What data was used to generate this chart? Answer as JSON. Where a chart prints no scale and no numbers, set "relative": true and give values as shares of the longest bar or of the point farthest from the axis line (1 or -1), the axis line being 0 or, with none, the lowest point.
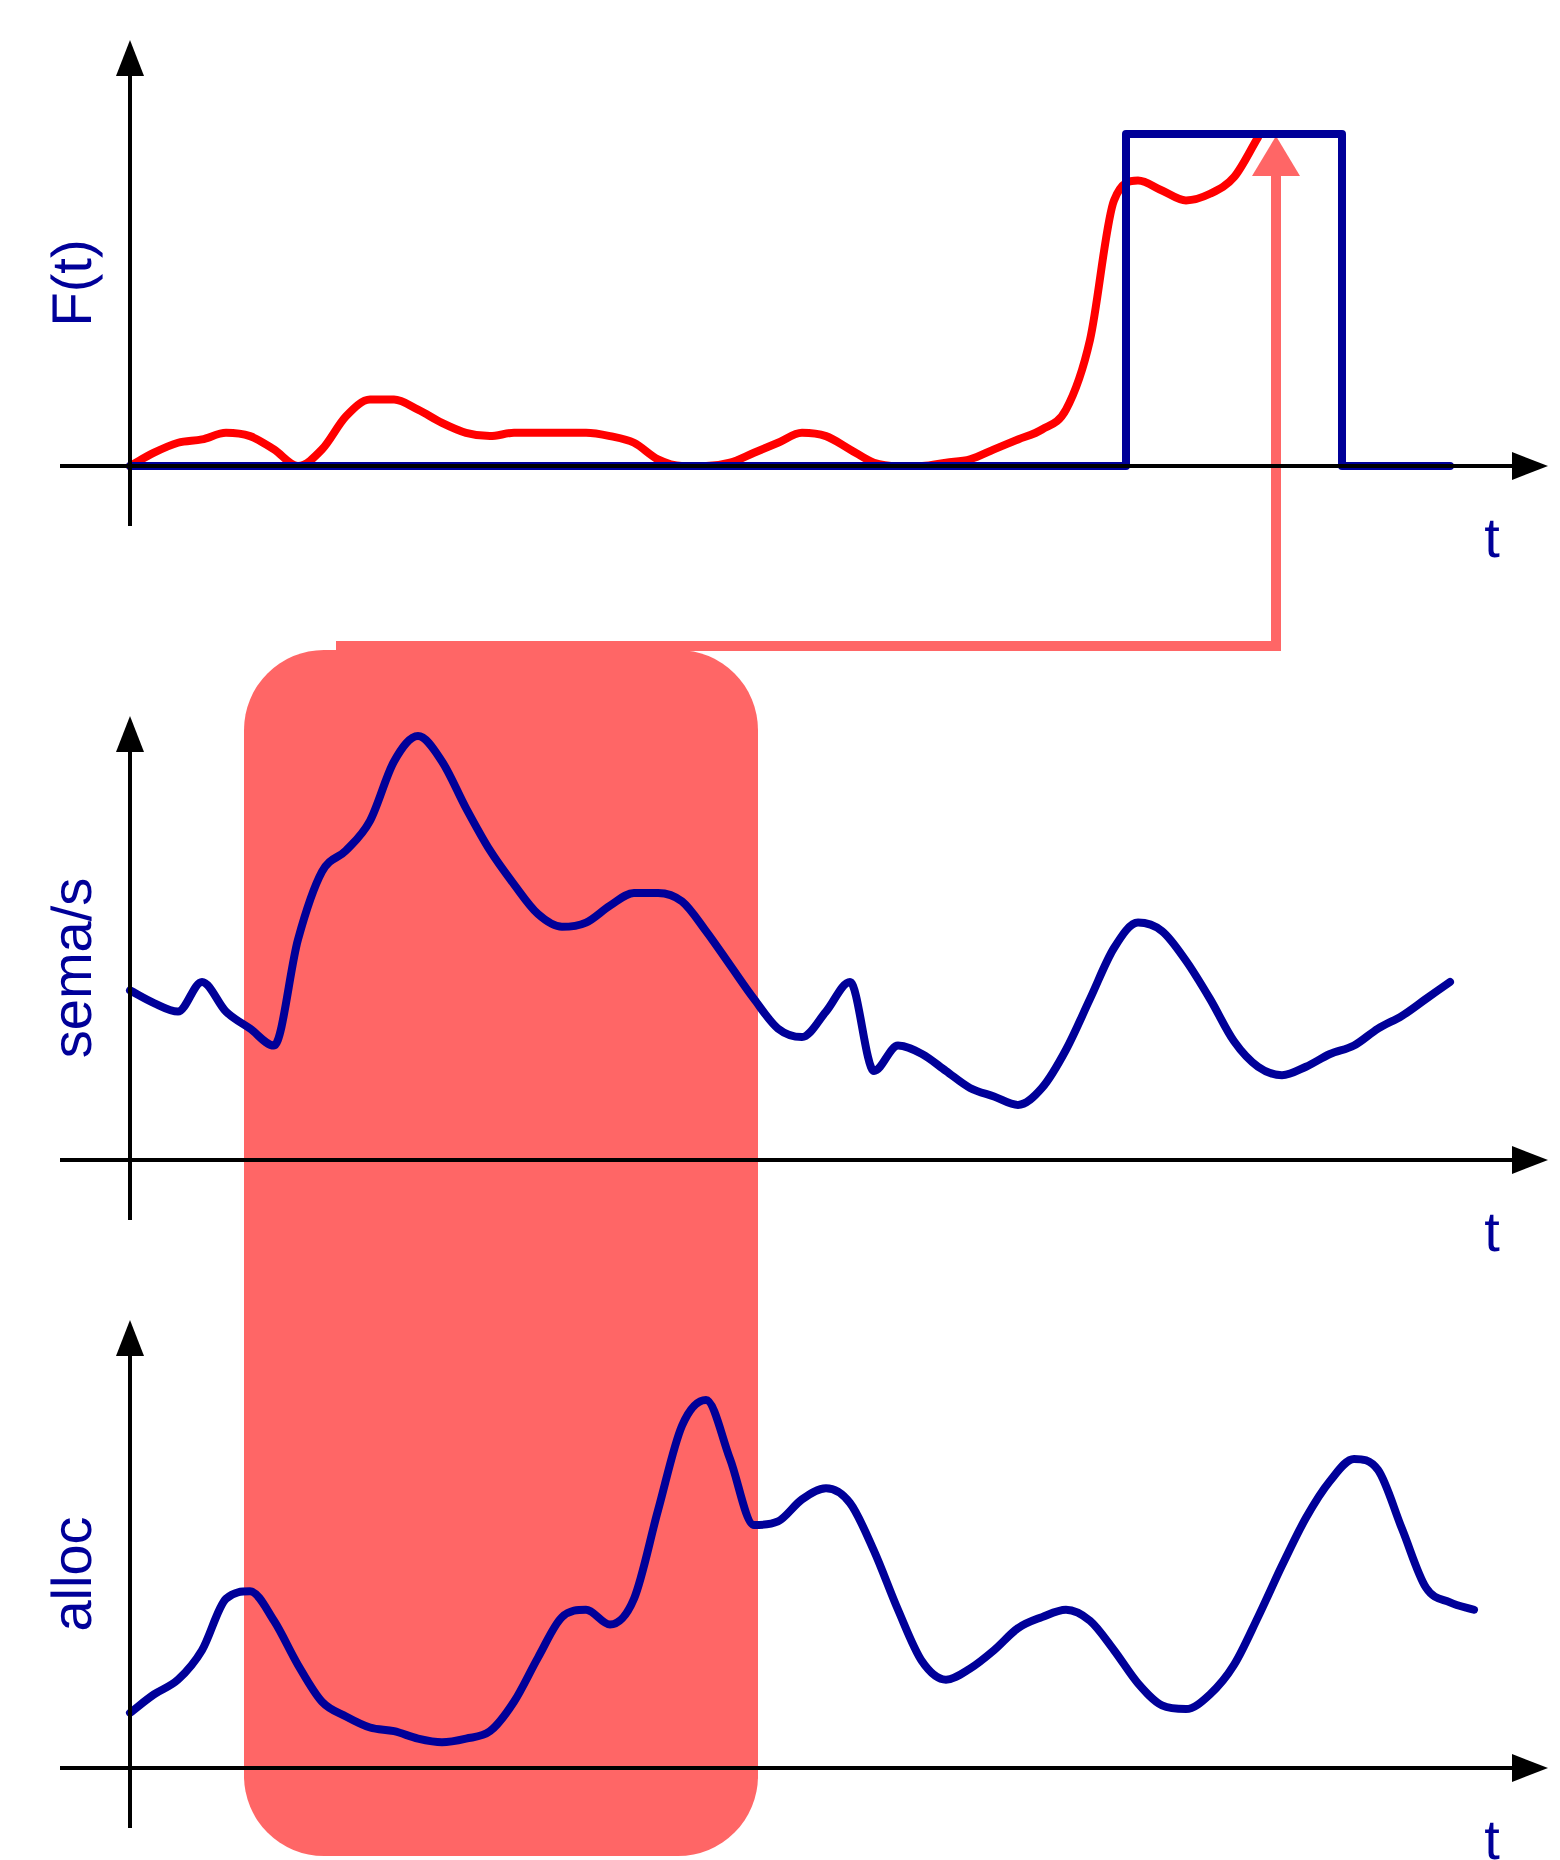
{
  "chart_data": [
    {
      "type": "line",
      "ylabel": "F(t)",
      "xlabel": "t",
      "relative": true,
      "legend": false,
      "categories": [
        null,
        null,
        null,
        null,
        null,
        null,
        null,
        null,
        null,
        null,
        null,
        null,
        null,
        null,
        null,
        null,
        null,
        null,
        null,
        null,
        null,
        null,
        null,
        null,
        null,
        null,
        null,
        null,
        null,
        null,
        null,
        null,
        null,
        null,
        null,
        null,
        null,
        null,
        null,
        null,
        null,
        null,
        null,
        null,
        null,
        null,
        null,
        null,
        null,
        null,
        null,
        null,
        null,
        null,
        null,
        null
      ],
      "series": [
        {
          "type": "step",
          "color": "#000099",
          "values": [
            0,
            0,
            0,
            0,
            0,
            0,
            0,
            0,
            0,
            0,
            0,
            0,
            0,
            0,
            0,
            0,
            0,
            0,
            0,
            0,
            0,
            0,
            0,
            0,
            0,
            0,
            0,
            0,
            0,
            0,
            0,
            0,
            0,
            0,
            0,
            0,
            0,
            0,
            0,
            0,
            0,
            0,
            1,
            1,
            1,
            1,
            1,
            1,
            1,
            1,
            1,
            0,
            0,
            0,
            0,
            0
          ]
        },
        {
          "type": "line",
          "color": "#ff0000",
          "values": [
            0,
            0.04,
            0.07,
            0.08,
            0.1,
            0.09,
            0.05,
            0,
            0.05,
            0.15,
            0.2,
            0.2,
            0.17,
            0.13,
            0.1,
            0.09,
            0.1,
            0.1,
            0.1,
            0.1,
            0.09,
            0.07,
            0.02,
            0,
            0,
            0.01,
            0.04,
            0.07,
            0.1,
            0.09,
            0.05,
            0.01,
            0,
            0,
            0.01,
            0.02,
            0.05,
            0.08,
            0.11,
            0.17,
            0.38,
            0.8,
            0.86,
            0.83,
            0.8,
            0.82,
            0.87,
            0.99,
            null,
            null,
            null,
            null,
            null,
            null,
            null,
            null
          ]
        }
      ]
    },
    {
      "type": "line",
      "ylabel": "sema/s",
      "xlabel": "t",
      "relative": true,
      "legend": false,
      "categories": [
        null,
        null,
        null,
        null,
        null,
        null,
        null,
        null,
        null,
        null,
        null,
        null,
        null,
        null,
        null,
        null,
        null,
        null,
        null,
        null,
        null,
        null,
        null,
        null,
        null,
        null,
        null,
        null,
        null,
        null,
        null,
        null,
        null,
        null,
        null,
        null,
        null,
        null,
        null,
        null,
        null,
        null,
        null,
        null,
        null,
        null,
        null,
        null,
        null,
        null,
        null,
        null,
        null,
        null,
        null,
        null
      ],
      "series": [
        {
          "color": "#000099",
          "values": [
            0.4,
            0.37,
            0.35,
            0.42,
            0.35,
            0.31,
            0.27,
            0.52,
            0.68,
            0.73,
            0.8,
            0.94,
            1,
            0.94,
            0.83,
            0.73,
            0.65,
            0.58,
            0.55,
            0.56,
            0.6,
            0.63,
            0.63,
            0.61,
            0.54,
            0.46,
            0.38,
            0.31,
            0.29,
            0.35,
            0.42,
            0.21,
            0.27,
            0.25,
            0.21,
            0.17,
            0.15,
            0.13,
            0.17,
            0.26,
            0.38,
            0.5,
            0.56,
            0.54,
            0.47,
            0.38,
            0.28,
            0.22,
            0.2,
            0.22,
            0.25,
            0.27,
            0.31,
            0.34,
            0.38,
            0.42
          ]
        }
      ]
    },
    {
      "type": "line",
      "ylabel": "alloc",
      "xlabel": "t",
      "relative": true,
      "legend": false,
      "categories": [
        null,
        null,
        null,
        null,
        null,
        null,
        null,
        null,
        null,
        null,
        null,
        null,
        null,
        null,
        null,
        null,
        null,
        null,
        null,
        null,
        null,
        null,
        null,
        null,
        null,
        null,
        null,
        null,
        null,
        null,
        null,
        null,
        null,
        null,
        null,
        null,
        null,
        null,
        null,
        null,
        null,
        null,
        null,
        null,
        null,
        null,
        null,
        null,
        null,
        null,
        null,
        null,
        null,
        null,
        null,
        null,
        null
      ],
      "series": [
        {
          "color": "#000099",
          "values": [
            0.15,
            0.2,
            0.24,
            0.32,
            0.46,
            0.48,
            0.4,
            0.28,
            0.18,
            0.14,
            0.11,
            0.1,
            0.08,
            0.07,
            0.08,
            0.1,
            0.18,
            0.3,
            0.41,
            0.43,
            0.39,
            0.46,
            0.7,
            0.93,
            1,
            0.84,
            0.66,
            0.67,
            0.73,
            0.76,
            0.72,
            0.59,
            0.43,
            0.29,
            0.24,
            0.27,
            0.32,
            0.38,
            0.41,
            0.43,
            0.4,
            0.32,
            0.23,
            0.17,
            0.16,
            0.2,
            0.28,
            0.41,
            0.55,
            0.68,
            0.78,
            0.84,
            0.81,
            0.65,
            0.49,
            0.45,
            0.43
          ]
        }
      ]
    }
  ]
}
